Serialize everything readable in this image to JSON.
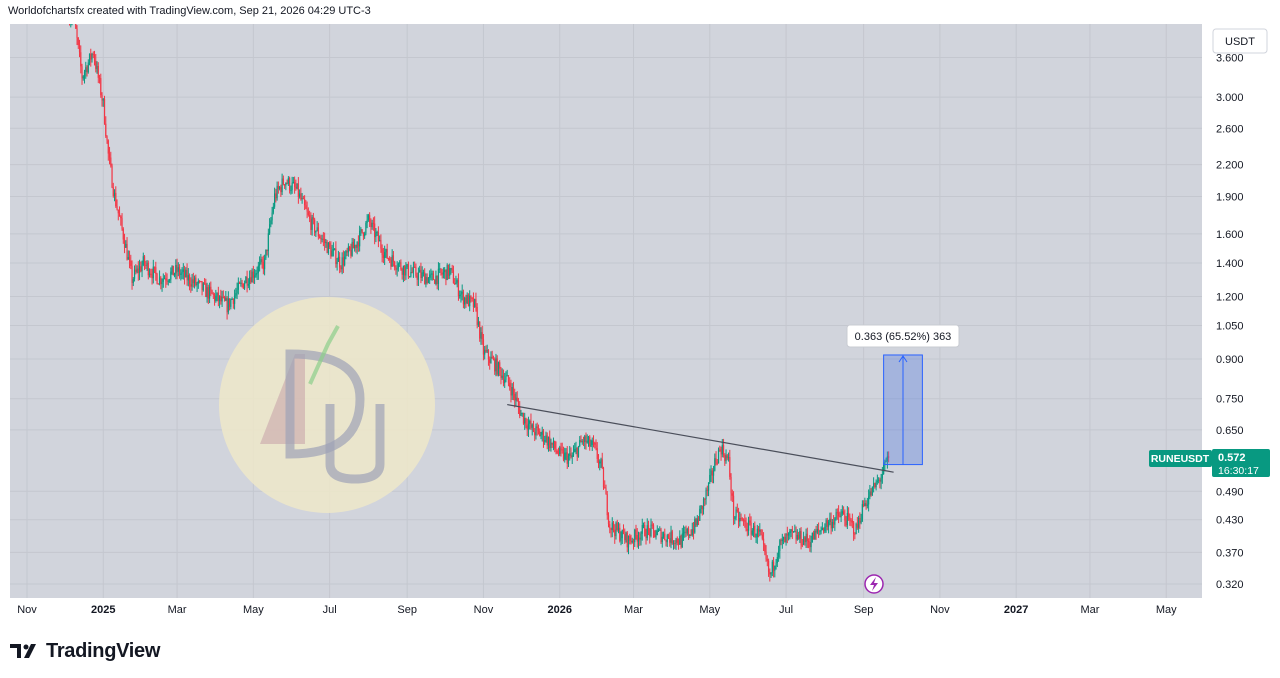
{
  "header": {
    "caption": "Worldofchartsfx created with TradingView.com, Sep 21, 2026 04:29 UTC-3"
  },
  "footer": {
    "brand": "TradingView"
  },
  "colors": {
    "background": "#d1d4dc",
    "up": "#089981",
    "down": "#f23645",
    "grid": "#c4c7cf",
    "trendline": "#4a4e5a",
    "measure_fill": "#4f79e0",
    "measure_stroke": "#2962ff",
    "price_label": "#089981"
  },
  "icons": {
    "lightning": "lightning-icon",
    "logo": "tradingview-logo-icon"
  },
  "chart_data": {
    "type": "candlestick",
    "symbol": "RUNEUSDT",
    "currency": "USDT",
    "scale": "log",
    "last_price": "0.572",
    "countdown": "16:30:17",
    "grid": true,
    "ylim": [
      0.3,
      4.2
    ],
    "y_ticks": [
      "3.600",
      "3.000",
      "2.600",
      "2.200",
      "1.900",
      "1.600",
      "1.400",
      "1.200",
      "1.050",
      "0.900",
      "0.750",
      "0.650",
      "0.490",
      "0.430",
      "0.370",
      "0.320"
    ],
    "x_ticks": [
      "Nov",
      "2025",
      "Mar",
      "May",
      "Jul",
      "Sep",
      "Nov",
      "2026",
      "Mar",
      "May",
      "Jul",
      "Sep",
      "Nov",
      "2027",
      "Mar",
      "May"
    ],
    "x_range": [
      "2024-11-01",
      "2027-05-20"
    ],
    "price_path": [
      [
        "2024-11-01",
        4.0
      ],
      [
        "2024-12-08",
        4.4
      ],
      [
        "2024-12-15",
        3.3
      ],
      [
        "2024-12-24",
        3.7
      ],
      [
        "2025-01-01",
        2.9
      ],
      [
        "2025-01-05",
        2.3
      ],
      [
        "2025-01-10",
        1.9
      ],
      [
        "2025-01-18",
        1.55
      ],
      [
        "2025-01-24",
        1.3
      ],
      [
        "2025-02-02",
        1.4
      ],
      [
        "2025-02-15",
        1.3
      ],
      [
        "2025-03-01",
        1.35
      ],
      [
        "2025-03-20",
        1.25
      ],
      [
        "2025-04-10",
        1.15
      ],
      [
        "2025-04-25",
        1.3
      ],
      [
        "2025-05-10",
        1.4
      ],
      [
        "2025-05-18",
        1.9
      ],
      [
        "2025-05-26",
        2.05
      ],
      [
        "2025-06-05",
        1.95
      ],
      [
        "2025-06-15",
        1.7
      ],
      [
        "2025-06-30",
        1.5
      ],
      [
        "2025-07-10",
        1.4
      ],
      [
        "2025-07-20",
        1.5
      ],
      [
        "2025-08-01",
        1.7
      ],
      [
        "2025-08-15",
        1.45
      ],
      [
        "2025-09-01",
        1.35
      ],
      [
        "2025-09-20",
        1.3
      ],
      [
        "2025-10-05",
        1.35
      ],
      [
        "2025-10-15",
        1.2
      ],
      [
        "2025-10-25",
        1.15
      ],
      [
        "2025-11-01",
        0.93
      ],
      [
        "2025-11-10",
        0.88
      ],
      [
        "2025-11-22",
        0.8
      ],
      [
        "2025-12-01",
        0.7
      ],
      [
        "2025-12-10",
        0.65
      ],
      [
        "2025-12-20",
        0.63
      ],
      [
        "2026-01-01",
        0.58
      ],
      [
        "2026-01-10",
        0.57
      ],
      [
        "2026-01-20",
        0.62
      ],
      [
        "2026-01-28",
        0.6
      ],
      [
        "2026-02-03",
        0.55
      ],
      [
        "2026-02-10",
        0.42
      ],
      [
        "2026-02-25",
        0.39
      ],
      [
        "2026-03-10",
        0.41
      ],
      [
        "2026-03-25",
        0.4
      ],
      [
        "2026-04-08",
        0.39
      ],
      [
        "2026-04-20",
        0.42
      ],
      [
        "2026-04-30",
        0.5
      ],
      [
        "2026-05-06",
        0.57
      ],
      [
        "2026-05-10",
        0.6
      ],
      [
        "2026-05-16",
        0.56
      ],
      [
        "2026-05-20",
        0.44
      ],
      [
        "2026-05-30",
        0.42
      ],
      [
        "2026-06-10",
        0.4
      ],
      [
        "2026-06-18",
        0.33
      ],
      [
        "2026-06-25",
        0.38
      ],
      [
        "2026-07-05",
        0.4
      ],
      [
        "2026-07-20",
        0.39
      ],
      [
        "2026-08-01",
        0.42
      ],
      [
        "2026-08-15",
        0.44
      ],
      [
        "2026-08-26",
        0.41
      ],
      [
        "2026-09-01",
        0.46
      ],
      [
        "2026-09-10",
        0.5
      ],
      [
        "2026-09-16",
        0.53
      ],
      [
        "2026-09-21",
        0.572
      ]
    ],
    "trendline": {
      "from": {
        "date": "2025-11-20",
        "price": 0.73
      },
      "to": {
        "date": "2026-09-25",
        "price": 0.535
      }
    },
    "measurement": {
      "label": "0.363 (65.52%) 363",
      "from_date": "2026-09-17",
      "to_date": "2026-10-18",
      "low": 0.554,
      "high": 0.917
    }
  }
}
